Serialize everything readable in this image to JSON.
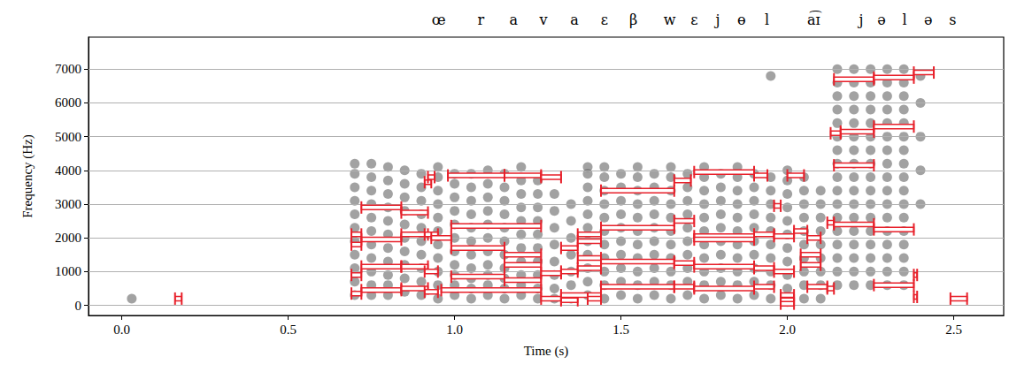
{
  "chart_data": {
    "type": "scatter",
    "x_label": "Time (s)",
    "y_label": "Frequency (Hz)",
    "xlim": [
      -0.1,
      2.65
    ],
    "xticks": [
      {
        "value": 0,
        "label": "0.0"
      },
      0.5,
      {
        "value": 1,
        "label": "1.0"
      },
      1.5,
      {
        "value": 2,
        "label": "2.0"
      },
      2.5
    ],
    "ylim": [
      -300,
      7950
    ],
    "yticks": [
      0,
      1000,
      2000,
      3000,
      4000,
      5000,
      6000,
      7000
    ],
    "grid": true,
    "annotations": [
      {
        "text": "œ",
        "x": 0.952
      },
      {
        "text": "r",
        "x": 1.079
      },
      {
        "text": "a",
        "x": 1.177
      },
      {
        "text": "v",
        "x": 1.267
      },
      {
        "text": "a",
        "x": 1.36
      },
      {
        "text": "ɛ",
        "x": 1.45
      },
      {
        "text": "β",
        "x": 1.537
      },
      {
        "text": "w",
        "x": 1.646
      },
      {
        "text": "ɛ",
        "x": 1.72
      },
      {
        "text": "j",
        "x": 1.791
      },
      {
        "text": "ɵ",
        "x": 1.862
      },
      {
        "text": "l",
        "x": 1.939
      },
      {
        "text": "a͡ɪ",
        "x": 2.079
      },
      {
        "text": "j",
        "x": 2.222
      },
      {
        "text": "ə",
        "x": 2.283
      },
      {
        "text": "l",
        "x": 2.352
      },
      {
        "text": "ə",
        "x": 2.423
      },
      {
        "text": "s",
        "x": 2.497
      }
    ],
    "spectrum": {
      "color": "#555555",
      "marker": "circle",
      "columns": [
        {
          "t": 0.03,
          "f": [
            200
          ]
        },
        {
          "t": 0.7,
          "f": [
            300,
            700,
            1100,
            1500,
            1900,
            2300,
            2700,
            3100,
            3500,
            3900,
            4200
          ]
        },
        {
          "t": 0.75,
          "f": [
            300,
            600,
            1000,
            1400,
            1800,
            2200,
            2600,
            3000,
            3400,
            3800,
            4200
          ]
        },
        {
          "t": 0.8,
          "f": [
            300,
            600,
            900,
            1300,
            1700,
            2100,
            2500,
            2900,
            3300,
            3700,
            4100
          ]
        },
        {
          "t": 0.85,
          "f": [
            400,
            800,
            1200,
            1600,
            2000,
            2400,
            2800,
            3200,
            3600,
            4000
          ]
        },
        {
          "t": 0.9,
          "f": [
            300,
            700,
            1100,
            1500,
            1900,
            2300,
            2700,
            3100,
            3500,
            3900
          ]
        },
        {
          "t": 0.95,
          "f": [
            200,
            600,
            1000,
            1400,
            1800,
            2200,
            2600,
            3000,
            3400,
            3800,
            4100
          ]
        },
        {
          "t": 1.0,
          "f": [
            300,
            600,
            900,
            1200,
            1600,
            2000,
            2400,
            2800,
            3200,
            3600,
            3900
          ]
        },
        {
          "t": 1.05,
          "f": [
            200,
            500,
            800,
            1100,
            1500,
            1900,
            2300,
            2700,
            3100,
            3500,
            3900
          ]
        },
        {
          "t": 1.1,
          "f": [
            300,
            600,
            900,
            1200,
            1600,
            2000,
            2400,
            2800,
            3200,
            3600,
            4000
          ]
        },
        {
          "t": 1.15,
          "f": [
            200,
            500,
            800,
            1100,
            1500,
            1900,
            2300,
            2700,
            3100,
            3500,
            3900
          ]
        },
        {
          "t": 1.2,
          "f": [
            300,
            600,
            900,
            1300,
            1700,
            2100,
            2500,
            2900,
            3300,
            3700,
            4100
          ]
        },
        {
          "t": 1.25,
          "f": [
            200,
            500,
            900,
            1300,
            1700,
            2100,
            2500,
            2900,
            3300,
            3700
          ]
        },
        {
          "t": 1.3,
          "f": [
            200,
            500,
            900,
            1300,
            1800,
            2300,
            2800,
            3300
          ]
        },
        {
          "t": 1.35,
          "f": [
            200,
            600,
            1000,
            1500,
            2000,
            2500,
            3000
          ]
        },
        {
          "t": 1.4,
          "f": [
            300,
            700,
            1100,
            1500,
            1900,
            2300,
            2700,
            3100,
            3500,
            3900,
            4100
          ]
        },
        {
          "t": 1.45,
          "f": [
            200,
            600,
            1000,
            1400,
            1800,
            2200,
            2600,
            3000,
            3400,
            3800,
            4100
          ]
        },
        {
          "t": 1.5,
          "f": [
            300,
            700,
            1100,
            1500,
            1900,
            2300,
            2700,
            3100,
            3500,
            3900
          ]
        },
        {
          "t": 1.55,
          "f": [
            200,
            600,
            1000,
            1400,
            1800,
            2200,
            2600,
            3000,
            3400,
            3800,
            4100
          ]
        },
        {
          "t": 1.6,
          "f": [
            300,
            700,
            1100,
            1500,
            1900,
            2300,
            2700,
            3100,
            3500,
            3900
          ]
        },
        {
          "t": 1.65,
          "f": [
            200,
            600,
            1000,
            1400,
            1800,
            2200,
            2600,
            3000,
            3400,
            3800,
            4100
          ]
        },
        {
          "t": 1.7,
          "f": [
            300,
            700,
            1100,
            1500,
            1900,
            2300,
            2700,
            3100,
            3500,
            3900
          ]
        },
        {
          "t": 1.75,
          "f": [
            200,
            600,
            1000,
            1400,
            1800,
            2200,
            2600,
            3000,
            3400,
            3800,
            4100
          ]
        },
        {
          "t": 1.8,
          "f": [
            300,
            700,
            1100,
            1500,
            1900,
            2300,
            2700,
            3100,
            3500,
            3900
          ]
        },
        {
          "t": 1.85,
          "f": [
            200,
            600,
            1000,
            1400,
            1800,
            2200,
            2600,
            3000,
            3400,
            3800,
            4100
          ]
        },
        {
          "t": 1.9,
          "f": [
            300,
            700,
            1100,
            1500,
            1900,
            2300,
            2700,
            3100,
            3500,
            3900
          ]
        },
        {
          "t": 1.95,
          "f": [
            200,
            600,
            1000,
            1400,
            1800,
            2200,
            2600,
            3000,
            3400,
            3800,
            6800
          ]
        },
        {
          "t": 2.0,
          "f": [
            100,
            500,
            900,
            1300,
            1700,
            2100,
            2500,
            2900,
            3300,
            3700,
            4000
          ]
        },
        {
          "t": 2.05,
          "f": [
            200,
            600,
            1000,
            1400,
            1800,
            2200,
            2600,
            3000,
            3400,
            3800
          ]
        },
        {
          "t": 2.1,
          "f": [
            200,
            600,
            1000,
            1400,
            1800,
            2200,
            2600,
            3000,
            3400
          ]
        },
        {
          "t": 2.15,
          "f": [
            600,
            1000,
            1400,
            1800,
            2200,
            2600,
            3000,
            3400,
            3800,
            4200,
            4600,
            5000,
            5400,
            5800,
            6200,
            6600,
            7000
          ]
        },
        {
          "t": 2.2,
          "f": [
            600,
            1000,
            1400,
            1800,
            2200,
            2600,
            3000,
            3400,
            3800,
            4200,
            4600,
            5000,
            5400,
            5800,
            6200,
            6600,
            7000
          ]
        },
        {
          "t": 2.25,
          "f": [
            600,
            1000,
            1400,
            1800,
            2200,
            2600,
            3000,
            3400,
            3800,
            4200,
            4600,
            5000,
            5400,
            5800,
            6200,
            6600,
            7000
          ]
        },
        {
          "t": 2.3,
          "f": [
            600,
            1000,
            1400,
            1800,
            2200,
            2600,
            3000,
            3400,
            3800,
            4200,
            4600,
            5000,
            5400,
            5800,
            6200,
            6600,
            7000
          ]
        },
        {
          "t": 2.35,
          "f": [
            600,
            1000,
            1400,
            1800,
            2200,
            2600,
            3000,
            3400,
            3800,
            4200,
            4600,
            5000,
            5400,
            5800,
            6200,
            6600,
            7000
          ]
        },
        {
          "t": 2.4,
          "f": [
            3000,
            4000,
            5000,
            6000,
            6800
          ]
        }
      ]
    },
    "intervals": {
      "color": "#e8202a",
      "values": [
        [
          0.16,
          0.18,
          200
        ],
        [
          2.49,
          2.54,
          200
        ],
        [
          0.72,
          0.84,
          2900
        ],
        [
          0.84,
          0.92,
          2750
        ],
        [
          0.72,
          0.84,
          1950
        ],
        [
          0.84,
          0.92,
          2100
        ],
        [
          0.69,
          0.72,
          1800
        ],
        [
          0.69,
          0.72,
          2100
        ],
        [
          0.72,
          0.84,
          1150
        ],
        [
          0.84,
          0.92,
          1150
        ],
        [
          0.72,
          0.84,
          450
        ],
        [
          0.84,
          0.92,
          500
        ],
        [
          0.69,
          0.72,
          350
        ],
        [
          0.69,
          0.72,
          900
        ],
        [
          0.91,
          0.93,
          3650
        ],
        [
          0.92,
          0.94,
          3800
        ],
        [
          0.91,
          0.95,
          2100
        ],
        [
          0.91,
          0.95,
          1000
        ],
        [
          0.91,
          0.95,
          400
        ],
        [
          0.98,
          1.15,
          3850
        ],
        [
          1.15,
          1.26,
          3850
        ],
        [
          1.26,
          1.32,
          3800
        ],
        [
          0.99,
          1.26,
          2350
        ],
        [
          0.93,
          0.99,
          2000
        ],
        [
          0.99,
          1.15,
          1700
        ],
        [
          1.15,
          1.26,
          1500
        ],
        [
          1.15,
          1.26,
          1200
        ],
        [
          0.99,
          1.15,
          850
        ],
        [
          1.15,
          1.26,
          750
        ],
        [
          0.96,
          1.26,
          450
        ],
        [
          1.26,
          1.32,
          950
        ],
        [
          1.26,
          1.32,
          200
        ],
        [
          1.32,
          1.37,
          150
        ],
        [
          1.44,
          1.66,
          3400
        ],
        [
          1.66,
          1.71,
          3700
        ],
        [
          1.37,
          1.44,
          2100
        ],
        [
          1.44,
          1.66,
          2300
        ],
        [
          1.66,
          1.72,
          2500
        ],
        [
          1.32,
          1.37,
          1700
        ],
        [
          1.37,
          1.44,
          1900
        ],
        [
          1.37,
          1.44,
          1400
        ],
        [
          1.44,
          1.66,
          1300
        ],
        [
          1.66,
          1.72,
          1250
        ],
        [
          1.32,
          1.37,
          1000
        ],
        [
          1.37,
          1.44,
          1100
        ],
        [
          1.44,
          1.66,
          550
        ],
        [
          1.66,
          1.72,
          550
        ],
        [
          1.32,
          1.44,
          300
        ],
        [
          1.4,
          1.44,
          200
        ],
        [
          1.72,
          1.9,
          3950
        ],
        [
          1.9,
          1.94,
          3850
        ],
        [
          1.96,
          1.98,
          2950
        ],
        [
          1.72,
          1.9,
          2050
        ],
        [
          1.9,
          1.96,
          2100
        ],
        [
          1.96,
          2.02,
          2050
        ],
        [
          1.72,
          1.9,
          1950
        ],
        [
          1.72,
          1.9,
          1150
        ],
        [
          1.9,
          1.96,
          1100
        ],
        [
          1.96,
          2.02,
          1000
        ],
        [
          1.72,
          1.9,
          500
        ],
        [
          1.9,
          1.96,
          550
        ],
        [
          2.0,
          2.05,
          3850
        ],
        [
          1.98,
          2.02,
          300
        ],
        [
          1.98,
          2.02,
          150
        ],
        [
          1.98,
          2.02,
          50
        ],
        [
          2.02,
          2.06,
          2200
        ],
        [
          2.06,
          2.1,
          2000
        ],
        [
          2.12,
          2.14,
          2450
        ],
        [
          2.04,
          2.1,
          1500
        ],
        [
          2.04,
          2.1,
          1200
        ],
        [
          2.06,
          2.12,
          550
        ],
        [
          2.12,
          2.14,
          500
        ],
        [
          2.14,
          2.26,
          6700
        ],
        [
          2.26,
          2.38,
          6750
        ],
        [
          2.38,
          2.44,
          6900
        ],
        [
          2.13,
          2.16,
          5100
        ],
        [
          2.16,
          2.26,
          5150
        ],
        [
          2.26,
          2.38,
          5300
        ],
        [
          2.14,
          2.26,
          4150
        ],
        [
          2.14,
          2.26,
          2400
        ],
        [
          2.26,
          2.38,
          2250
        ],
        [
          2.26,
          2.38,
          600
        ],
        [
          2.38,
          2.39,
          900
        ],
        [
          2.38,
          2.39,
          250
        ]
      ]
    }
  }
}
